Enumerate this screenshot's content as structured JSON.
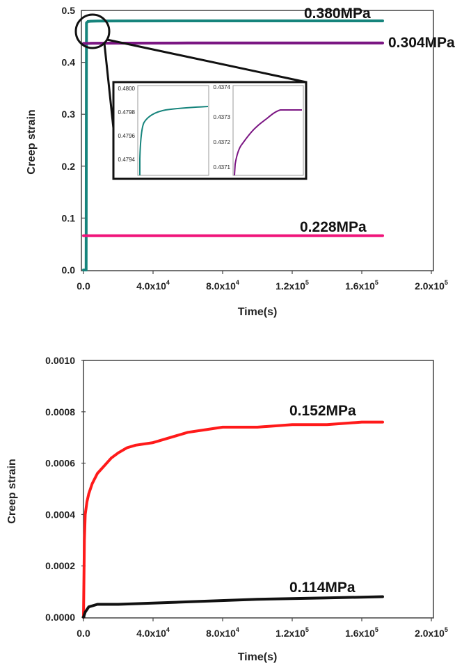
{
  "chart_data": [
    {
      "type": "line",
      "xlabel": "Time(s)",
      "ylabel": "Creep strain",
      "xlim": [
        0,
        200000
      ],
      "ylim": [
        0,
        0.5
      ],
      "x_ticks": [
        {
          "value": 0,
          "mant": "0.0",
          "exp": ""
        },
        {
          "value": 40000,
          "mant": "4.0x10",
          "exp": "4"
        },
        {
          "value": 80000,
          "mant": "8.0x10",
          "exp": "4"
        },
        {
          "value": 120000,
          "mant": "1.2x10",
          "exp": "5"
        },
        {
          "value": 160000,
          "mant": "1.6x10",
          "exp": "5"
        },
        {
          "value": 200000,
          "mant": "2.0x10",
          "exp": "5"
        }
      ],
      "y_ticks": [
        {
          "value": 0,
          "label": "0.0"
        },
        {
          "value": 0.1,
          "label": "0.1"
        },
        {
          "value": 0.2,
          "label": "0.2"
        },
        {
          "value": 0.3,
          "label": "0.3"
        },
        {
          "value": 0.4,
          "label": "0.4"
        },
        {
          "value": 0.5,
          "label": "0.5"
        }
      ],
      "series": [
        {
          "name": "0.380MPa",
          "color": "#16847c",
          "x": [
            0,
            1500,
            1700,
            2500,
            4000,
            8000,
            20000,
            60000,
            100000,
            140000,
            172000
          ],
          "y": [
            0,
            0,
            0.476,
            0.4787,
            0.4792,
            0.4796,
            0.4798,
            0.4799,
            0.4799,
            0.4799,
            0.4799
          ]
        },
        {
          "name": "0.304MPa",
          "color": "#7b1683",
          "x": [
            0,
            3500,
            5000,
            20000,
            60000,
            100000,
            140000,
            172000
          ],
          "y": [
            0.4364,
            0.4366,
            0.4368,
            0.437,
            0.4372,
            0.4373,
            0.4373,
            0.4373
          ]
        },
        {
          "name": "0.228MPa",
          "color": "#f0147a",
          "x": [
            0,
            172000
          ],
          "y": [
            0.066,
            0.066
          ]
        }
      ],
      "inset": {
        "left": {
          "y_ticks": [
            "0.4800",
            "0.4798",
            "0.4796",
            "0.4794"
          ],
          "color": "#16847c"
        },
        "right": {
          "y_ticks": [
            "0.4374",
            "0.4373",
            "0.4372",
            "0.4371"
          ],
          "color": "#7b1683"
        }
      }
    },
    {
      "type": "line",
      "xlabel": "Time(s)",
      "ylabel": "Creep strain",
      "xlim": [
        0,
        200000
      ],
      "ylim": [
        0,
        0.001
      ],
      "x_ticks": [
        {
          "value": 0,
          "mant": "0.0",
          "exp": ""
        },
        {
          "value": 40000,
          "mant": "4.0x10",
          "exp": "4"
        },
        {
          "value": 80000,
          "mant": "8.0x10",
          "exp": "4"
        },
        {
          "value": 120000,
          "mant": "1.2x10",
          "exp": "5"
        },
        {
          "value": 160000,
          "mant": "1.6x10",
          "exp": "5"
        },
        {
          "value": 200000,
          "mant": "2.0x10",
          "exp": "5"
        }
      ],
      "y_ticks": [
        {
          "value": 0,
          "label": "0.0000"
        },
        {
          "value": 0.0002,
          "label": "0.0002"
        },
        {
          "value": 0.0004,
          "label": "0.0004"
        },
        {
          "value": 0.0006,
          "label": "0.0006"
        },
        {
          "value": 0.0008,
          "label": "0.0008"
        },
        {
          "value": 0.001,
          "label": "0.0010"
        }
      ],
      "series": [
        {
          "name": "0.152MPa",
          "color": "#ff1a1a",
          "x": [
            0,
            500,
            1000,
            2000,
            3000,
            5000,
            8000,
            12000,
            16000,
            20000,
            25000,
            30000,
            40000,
            50000,
            60000,
            70000,
            80000,
            100000,
            120000,
            140000,
            160000,
            172000
          ],
          "y": [
            0,
            0.0003,
            0.0004,
            0.00045,
            0.00048,
            0.00052,
            0.00056,
            0.00059,
            0.00062,
            0.00064,
            0.00066,
            0.00067,
            0.00068,
            0.0007,
            0.00072,
            0.00073,
            0.00074,
            0.00074,
            0.00075,
            0.00075,
            0.00076,
            0.00076
          ]
        },
        {
          "name": "0.114MPa",
          "color": "#111111",
          "x": [
            0,
            1000,
            3000,
            8000,
            20000,
            60000,
            100000,
            140000,
            172000
          ],
          "y": [
            0,
            2e-05,
            4e-05,
            5e-05,
            5e-05,
            6e-05,
            7e-05,
            7.5e-05,
            8e-05
          ]
        }
      ]
    }
  ]
}
